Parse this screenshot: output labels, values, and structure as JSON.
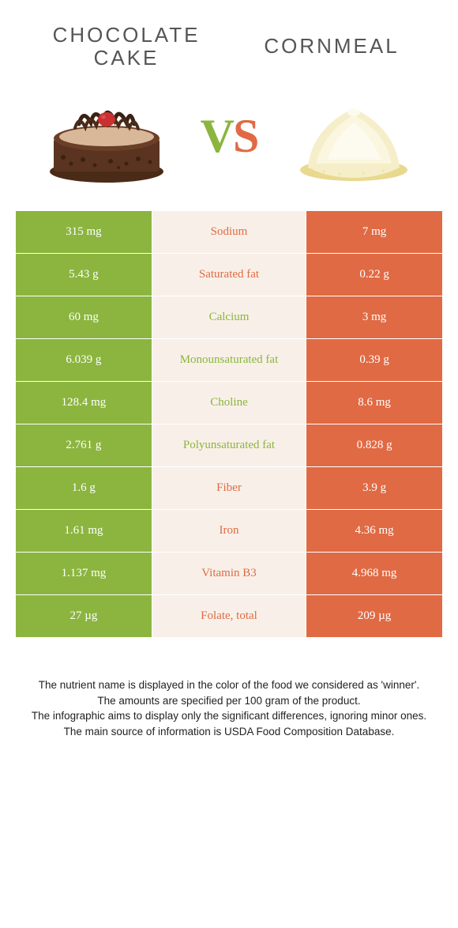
{
  "header": {
    "left_title": "Chocolate cake",
    "right_title": "Cornmeal",
    "vs_v": "V",
    "vs_s": "S"
  },
  "colors": {
    "green": "#8bb53f",
    "orange": "#e06a44",
    "mid_bg": "#f8f0e8",
    "white": "#ffffff"
  },
  "table": {
    "type": "comparison-table",
    "rows": [
      {
        "left": "315 mg",
        "nutrient": "Sodium",
        "right": "7 mg",
        "winner": "orange"
      },
      {
        "left": "5.43 g",
        "nutrient": "Saturated fat",
        "right": "0.22 g",
        "winner": "orange"
      },
      {
        "left": "60 mg",
        "nutrient": "Calcium",
        "right": "3 mg",
        "winner": "green"
      },
      {
        "left": "6.039 g",
        "nutrient": "Monounsaturated fat",
        "right": "0.39 g",
        "winner": "green"
      },
      {
        "left": "128.4 mg",
        "nutrient": "Choline",
        "right": "8.6 mg",
        "winner": "green"
      },
      {
        "left": "2.761 g",
        "nutrient": "Polyunsaturated fat",
        "right": "0.828 g",
        "winner": "green"
      },
      {
        "left": "1.6 g",
        "nutrient": "Fiber",
        "right": "3.9 g",
        "winner": "orange"
      },
      {
        "left": "1.61 mg",
        "nutrient": "Iron",
        "right": "4.36 mg",
        "winner": "orange"
      },
      {
        "left": "1.137 mg",
        "nutrient": "Vitamin B3",
        "right": "4.968 mg",
        "winner": "orange"
      },
      {
        "left": "27 µg",
        "nutrient": "Folate, total",
        "right": "209 µg",
        "winner": "orange"
      }
    ]
  },
  "footer": {
    "line1": "The nutrient name is displayed in the color of the food we considered as 'winner'.",
    "line2": "The amounts are specified per 100 gram of the product.",
    "line3": "The infographic aims to display only the significant differences, ignoring minor ones.",
    "line4": "The main source of information is USDA Food Composition Database."
  }
}
